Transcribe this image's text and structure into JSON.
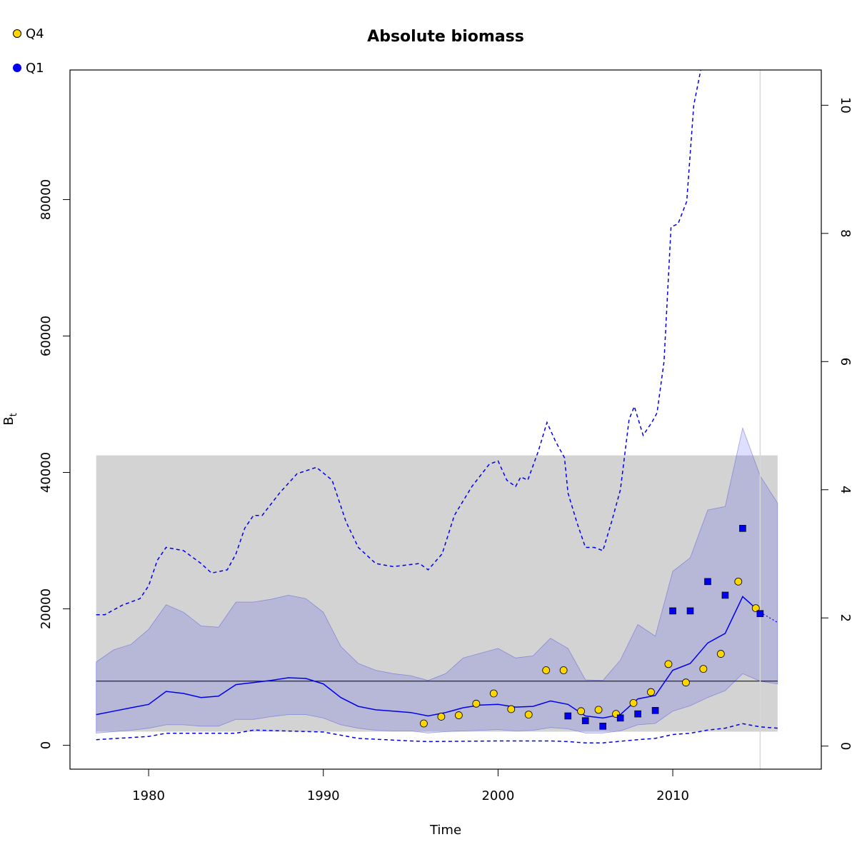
{
  "chart_data": {
    "type": "line",
    "title": "Absolute biomass",
    "xlabel": "Time",
    "ylabel": "B",
    "ylabel_sub": "t",
    "xlim": [
      1975.5,
      2018.5
    ],
    "ylim": [
      -3500,
      99000
    ],
    "y2lim": [
      -0.36,
      10.55
    ],
    "x_ticks": [
      1980,
      1990,
      2000,
      2010
    ],
    "x_tick_labels": [
      "1980",
      "1990",
      "2000",
      "2010"
    ],
    "y_ticks": [
      0,
      20000,
      40000,
      60000,
      80000
    ],
    "y_tick_labels": [
      "0",
      "20000",
      "40000",
      "60000",
      "80000"
    ],
    "y2_ticks": [
      0,
      2,
      4,
      6,
      8,
      10
    ],
    "y2_tick_labels": [
      "0",
      "2",
      "4",
      "6",
      "8",
      "10"
    ],
    "legend_position": "top-left",
    "legend": [
      {
        "label": "Q4",
        "color": "#FFD700",
        "marker": "circle"
      },
      {
        "label": "Q1",
        "color": "#0000EE",
        "marker": "circle"
      }
    ],
    "reference_rectangle": {
      "x": [
        1977,
        2016
      ],
      "y": [
        2000,
        42500
      ],
      "color": "#d3d3d3"
    },
    "bmsy_line": {
      "value": 9400,
      "x": [
        1977,
        2016
      ]
    },
    "current_year_line": 2015,
    "biomass_estimate": {
      "x": [
        1977,
        1978,
        1979,
        1980,
        1981,
        1982,
        1983,
        1984,
        1985,
        1986,
        1987,
        1988,
        1989,
        1990,
        1991,
        1992,
        1993,
        1994,
        1995,
        1996,
        1997,
        1998,
        1999,
        2000,
        2001,
        2002,
        2003,
        2004,
        2005,
        2006,
        2007,
        2008,
        2009,
        2010,
        2011,
        2012,
        2013,
        2014,
        2015
      ],
      "y": [
        4500,
        5000,
        5500,
        6000,
        7900,
        7600,
        7000,
        7200,
        8900,
        9200,
        9500,
        9900,
        9800,
        9000,
        7000,
        5700,
        5200,
        5000,
        4800,
        4300,
        4800,
        5500,
        5900,
        6000,
        5600,
        5700,
        6500,
        6000,
        4300,
        4000,
        4500,
        6800,
        7300,
        11000,
        12000,
        15000,
        16400,
        21800,
        19500
      ]
    },
    "biomass_forecast": {
      "x": [
        2015,
        2016
      ],
      "y": [
        19500,
        18000
      ]
    },
    "ci_upper": {
      "x": [
        1977,
        1978,
        1979,
        1980,
        1981,
        1982,
        1983,
        1984,
        1985,
        1986,
        1987,
        1988,
        1989,
        1990,
        1991,
        1992,
        1993,
        1994,
        1995,
        1996,
        1997,
        1998,
        1999,
        2000,
        2001,
        2002,
        2003,
        2004,
        2005,
        2006,
        2007,
        2008,
        2009,
        2010,
        2011,
        2012,
        2013,
        2014,
        2015,
        2016
      ],
      "y": [
        12200,
        14000,
        14800,
        17000,
        20600,
        19500,
        17500,
        17300,
        21000,
        21000,
        21400,
        22000,
        21500,
        19500,
        14500,
        12000,
        11000,
        10500,
        10200,
        9500,
        10500,
        12800,
        13500,
        14200,
        12800,
        13100,
        15700,
        14200,
        9600,
        9500,
        12500,
        17700,
        16000,
        25500,
        27500,
        34500,
        35000,
        46500,
        39500,
        35500
      ]
    },
    "ci_lower": {
      "x": [
        1977,
        1978,
        1979,
        1980,
        1981,
        1982,
        1983,
        1984,
        1985,
        1986,
        1987,
        1988,
        1989,
        1990,
        1991,
        1992,
        1993,
        1994,
        1995,
        1996,
        1997,
        1998,
        1999,
        2000,
        2001,
        2002,
        2003,
        2004,
        2005,
        2006,
        2007,
        2008,
        2009,
        2010,
        2011,
        2012,
        2013,
        2014,
        2015,
        2016
      ],
      "y": [
        1800,
        2000,
        2200,
        2500,
        3000,
        3000,
        2800,
        2800,
        3800,
        3800,
        4200,
        4500,
        4500,
        4000,
        3000,
        2500,
        2200,
        2100,
        2100,
        1800,
        2000,
        2100,
        2200,
        2300,
        2100,
        2200,
        2600,
        2400,
        1800,
        1800,
        2100,
        3000,
        3200,
        5000,
        5800,
        7000,
        8000,
        10500,
        9400,
        9000
      ]
    },
    "ffmsy_line": {
      "x": [
        1977,
        1977.5,
        1978.5,
        1979.5,
        1980,
        1980.5,
        1981,
        1982,
        1983,
        1983.6,
        1984.5,
        1985,
        1985.5,
        1986,
        1986.5,
        1987.5,
        1988.5,
        1989.6,
        1990.5,
        1991.3,
        1992,
        1993,
        1994,
        1995.5,
        1996,
        1996.8,
        1997.5,
        1998.5,
        1999.5,
        2000,
        2000.5,
        2001,
        2001.3,
        2001.7,
        2002.3,
        2002.8,
        2003.3,
        2003.8,
        2004,
        2004.5,
        2005,
        2005.5,
        2006,
        2006.5,
        2007,
        2007.5,
        2007.8,
        2008.3,
        2008.8,
        2009.1,
        2009.5,
        2009.9,
        2010.3,
        2010.8,
        2011.2,
        2011.6
      ],
      "y": [
        2.05,
        2.05,
        2.2,
        2.3,
        2.5,
        2.9,
        3.1,
        3.05,
        2.85,
        2.7,
        2.75,
        3.0,
        3.4,
        3.6,
        3.6,
        3.95,
        4.25,
        4.35,
        4.15,
        3.5,
        3.1,
        2.85,
        2.8,
        2.85,
        2.75,
        3.0,
        3.6,
        4.05,
        4.4,
        4.45,
        4.15,
        4.05,
        4.2,
        4.15,
        4.6,
        5.05,
        4.75,
        4.5,
        3.95,
        3.5,
        3.1,
        3.1,
        3.05,
        3.5,
        4.0,
        5.1,
        5.3,
        4.85,
        5.05,
        5.2,
        6.0,
        8.1,
        8.15,
        8.5,
        10.0,
        10.55
      ]
    },
    "ffmsy_lower": {
      "x": [
        1977,
        1980,
        1981,
        1985,
        1986,
        1990,
        1992,
        1995,
        1996,
        2000,
        2003,
        2004,
        2005,
        2006,
        2008,
        2009,
        2010,
        2011,
        2012,
        2013,
        2014,
        2015,
        2016
      ],
      "y": [
        0.1,
        0.15,
        0.2,
        0.2,
        0.25,
        0.22,
        0.12,
        0.08,
        0.07,
        0.08,
        0.08,
        0.07,
        0.05,
        0.05,
        0.1,
        0.12,
        0.18,
        0.2,
        0.25,
        0.28,
        0.35,
        0.3,
        0.28
      ]
    },
    "q4_index": {
      "name": "Q4",
      "x": [
        1995.75,
        1996.75,
        1997.75,
        1998.75,
        1999.75,
        2000.75,
        2001.75,
        2002.75,
        2003.75,
        2004.75,
        2005.75,
        2006.75,
        2007.75,
        2008.75,
        2009.75,
        2010.75,
        2011.75,
        2012.75,
        2013.75,
        2014.75
      ],
      "y": [
        3200,
        4200,
        4400,
        6100,
        7600,
        5300,
        4500,
        11000,
        11000,
        5000,
        5200,
        4600,
        6200,
        7800,
        11900,
        9200,
        11200,
        13400,
        24000,
        20100
      ]
    },
    "q1_index": {
      "name": "Q1",
      "x": [
        2004,
        2005,
        2006,
        2007,
        2008,
        2009,
        2010,
        2011,
        2012,
        2013,
        2014,
        2015
      ],
      "y": [
        4300,
        3600,
        2800,
        4000,
        4600,
        5100,
        19700,
        19700,
        24000,
        22000,
        31800,
        19300
      ]
    }
  }
}
